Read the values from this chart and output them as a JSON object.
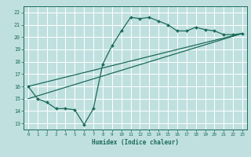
{
  "title": "",
  "xlabel": "Humidex (Indice chaleur)",
  "bg_color": "#c0e0e0",
  "grid_color": "#ffffff",
  "line_color": "#1a6b5a",
  "xlim": [
    -0.5,
    23.5
  ],
  "ylim": [
    12.5,
    22.5
  ],
  "xticks": [
    0,
    1,
    2,
    3,
    4,
    5,
    6,
    7,
    8,
    9,
    10,
    11,
    12,
    13,
    14,
    15,
    16,
    17,
    18,
    19,
    20,
    21,
    22,
    23
  ],
  "yticks": [
    13,
    14,
    15,
    16,
    17,
    18,
    19,
    20,
    21,
    22
  ],
  "line1_x": [
    0,
    1,
    2,
    3,
    4,
    5,
    6,
    7,
    8,
    9,
    10,
    11,
    12,
    13,
    14,
    15,
    16,
    17,
    18,
    19,
    20,
    21,
    22,
    23
  ],
  "line1_y": [
    16.0,
    15.0,
    14.7,
    14.2,
    14.2,
    14.1,
    12.9,
    14.2,
    17.8,
    19.3,
    20.5,
    21.6,
    21.5,
    21.6,
    21.3,
    21.0,
    20.5,
    20.5,
    20.8,
    20.6,
    20.5,
    20.2,
    20.2,
    20.3
  ],
  "line2_x": [
    0,
    23
  ],
  "line2_y": [
    15.0,
    20.3
  ],
  "line3_x": [
    0,
    23
  ],
  "line3_y": [
    16.0,
    20.3
  ]
}
